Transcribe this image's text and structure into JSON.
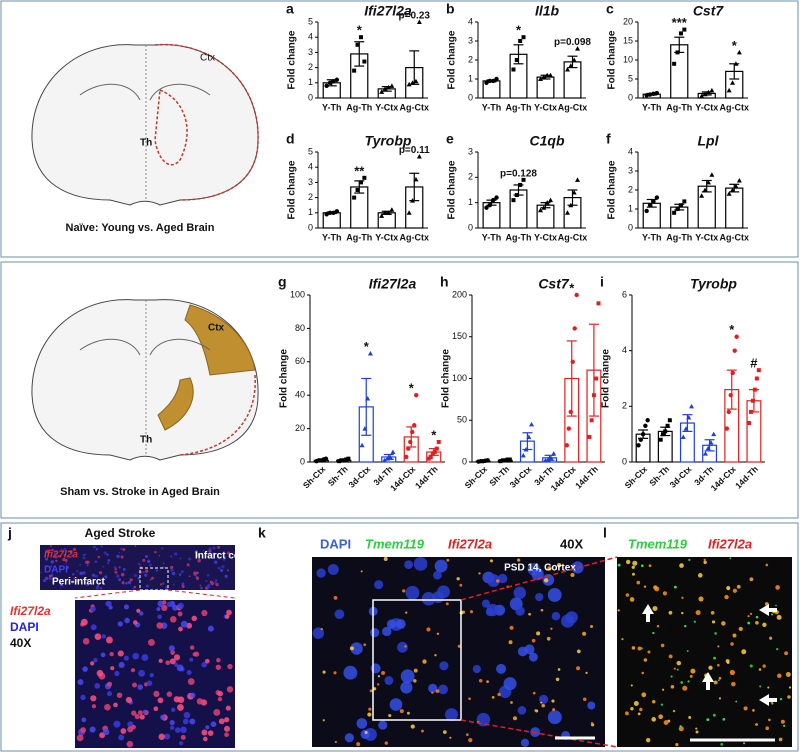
{
  "chart_data": [
    {
      "type": "bar",
      "letter": "a",
      "title": "Ifi27l2a",
      "y_label": "Fold change",
      "categories": [
        "Y-Th",
        "Ag-Th",
        "Y-Ctx",
        "Ag-Ctx"
      ],
      "values": [
        1.0,
        2.9,
        0.6,
        2.0
      ],
      "errors": [
        0.2,
        0.8,
        0.15,
        1.1
      ],
      "points": [
        [
          0.8,
          1.0,
          1.1,
          1.2
        ],
        [
          1.8,
          3.5,
          4.0,
          2.4
        ],
        [
          0.4,
          0.6,
          0.7,
          0.8
        ],
        [
          0.9,
          1.0,
          1.1,
          5.0
        ]
      ],
      "annotations": [
        null,
        "*",
        null,
        "p=0.23"
      ],
      "colors": [
        "#000000",
        "#000000",
        "#000000",
        "#000000"
      ],
      "ylim": [
        0,
        5
      ],
      "yticks": [
        0,
        1,
        2,
        3,
        4,
        5
      ]
    },
    {
      "type": "bar",
      "letter": "b",
      "title": "Il1b",
      "y_label": "Fold change",
      "categories": [
        "Y-Th",
        "Ag-Th",
        "Y-Ctx",
        "Ag-Ctx"
      ],
      "values": [
        0.9,
        2.3,
        1.1,
        1.9
      ],
      "errors": [
        0.05,
        0.5,
        0.1,
        0.3
      ],
      "points": [
        [
          0.8,
          0.9,
          0.9,
          1.0
        ],
        [
          1.5,
          2.0,
          3.0,
          3.2
        ],
        [
          1.0,
          1.1,
          1.2,
          1.2
        ],
        [
          1.5,
          1.7,
          2.0,
          2.6
        ]
      ],
      "annotations": [
        null,
        "*",
        null,
        "p=0.098"
      ],
      "colors": [
        "#000000",
        "#000000",
        "#000000",
        "#000000"
      ],
      "ylim": [
        0,
        4
      ],
      "yticks": [
        0,
        1,
        2,
        3,
        4
      ]
    },
    {
      "type": "bar",
      "letter": "c",
      "title": "Cst7",
      "y_label": "Fold change",
      "categories": [
        "Y-Th",
        "Ag-Th",
        "Y-Ctx",
        "Ag-Ctx"
      ],
      "values": [
        1.0,
        14,
        1.2,
        7
      ],
      "errors": [
        0.2,
        2,
        0.4,
        2
      ],
      "points": [
        [
          0.7,
          0.9,
          1.1,
          1.3
        ],
        [
          9,
          12,
          17,
          18
        ],
        [
          0.5,
          1.0,
          1.5,
          2.0
        ],
        [
          2,
          4,
          9,
          12
        ]
      ],
      "annotations": [
        null,
        "***",
        null,
        "*"
      ],
      "colors": [
        "#000000",
        "#000000",
        "#000000",
        "#000000"
      ],
      "ylim": [
        0,
        20
      ],
      "yticks": [
        0,
        5,
        10,
        15,
        20
      ]
    },
    {
      "type": "bar",
      "letter": "d",
      "title": "Tyrobp",
      "y_label": "Fold change",
      "categories": [
        "Y-Th",
        "Ag-Th",
        "Y-Ctx",
        "Ag-Ctx"
      ],
      "values": [
        1.0,
        2.7,
        1.0,
        2.7
      ],
      "errors": [
        0.05,
        0.4,
        0.1,
        0.9
      ],
      "points": [
        [
          0.9,
          1.0,
          1.0,
          1.1
        ],
        [
          2.0,
          2.5,
          3.0,
          3.3
        ],
        [
          0.8,
          1.0,
          1.0,
          1.2
        ],
        [
          1.0,
          1.8,
          3.2,
          4.7
        ]
      ],
      "annotations": [
        null,
        "**",
        null,
        "p=0.11"
      ],
      "colors": [
        "#000000",
        "#000000",
        "#000000",
        "#000000"
      ],
      "ylim": [
        0,
        5
      ],
      "yticks": [
        0,
        1,
        2,
        3,
        4,
        5
      ]
    },
    {
      "type": "bar",
      "letter": "e",
      "title": "C1qb",
      "y_label": "Fold change",
      "categories": [
        "Y-Th",
        "Ag-Th",
        "Y-Ctx",
        "Ag-Ctx"
      ],
      "values": [
        1.0,
        1.5,
        0.9,
        1.2
      ],
      "errors": [
        0.1,
        0.2,
        0.1,
        0.3
      ],
      "points": [
        [
          0.8,
          0.9,
          1.1,
          1.2
        ],
        [
          1.1,
          1.3,
          1.7,
          1.9
        ],
        [
          0.7,
          0.8,
          1.0,
          1.1
        ],
        [
          0.6,
          0.9,
          1.4,
          1.9
        ]
      ],
      "annotations": [
        null,
        "p=0.128",
        null,
        null
      ],
      "colors": [
        "#000000",
        "#000000",
        "#000000",
        "#000000"
      ],
      "ylim": [
        0,
        3
      ],
      "yticks": [
        0,
        1,
        2,
        3
      ]
    },
    {
      "type": "bar",
      "letter": "f",
      "title": "Lpl",
      "y_label": "Fold change",
      "categories": [
        "Y-Th",
        "Ag-Th",
        "Y-Ctx",
        "Ag-Ctx"
      ],
      "values": [
        1.3,
        1.1,
        2.2,
        2.1
      ],
      "errors": [
        0.2,
        0.15,
        0.3,
        0.2
      ],
      "points": [
        [
          0.9,
          1.2,
          1.4,
          1.6
        ],
        [
          0.8,
          1.0,
          1.2,
          1.4
        ],
        [
          1.7,
          2.0,
          2.4,
          2.8
        ],
        [
          1.8,
          2.0,
          2.2,
          2.5
        ]
      ],
      "annotations": [
        null,
        null,
        null,
        null
      ],
      "colors": [
        "#000000",
        "#000000",
        "#000000",
        "#000000"
      ],
      "ylim": [
        0,
        4
      ],
      "yticks": [
        0,
        1,
        2,
        3,
        4
      ]
    },
    {
      "type": "bar",
      "letter": "g",
      "title": "Ifi27l2a",
      "y_label": "Fold change",
      "categories": [
        "Sh-Ctx",
        "Sh-Th",
        "3d-Ctx",
        "3d-Th",
        "14d-Ctx",
        "14d-Th"
      ],
      "values": [
        1,
        1,
        33,
        3,
        15,
        6
      ],
      "errors": [
        0.5,
        0.5,
        17,
        1.5,
        6,
        2
      ],
      "points": [
        [
          0.5,
          1,
          1,
          1.5,
          2
        ],
        [
          0.5,
          1,
          1,
          1.5,
          2
        ],
        [
          10,
          20,
          38,
          65
        ],
        [
          1,
          2,
          3,
          6
        ],
        [
          3,
          8,
          12,
          18,
          22,
          40
        ],
        [
          2,
          3,
          5,
          6,
          8,
          12
        ]
      ],
      "annotations": [
        null,
        null,
        "*",
        null,
        "*",
        "*"
      ],
      "colors": [
        "#000000",
        "#000000",
        "#1f3fd6",
        "#1f3fd6",
        "#e02020",
        "#e02020"
      ],
      "ylim": [
        0,
        100
      ],
      "yticks": [
        0,
        20,
        40,
        60,
        80,
        100
      ]
    },
    {
      "type": "bar",
      "letter": "h",
      "title": "Cst7",
      "y_label": "Fold change",
      "categories": [
        "Sh-Ctx",
        "Sh-Th",
        "3d-Ctx",
        "3d-Th",
        "14d-Ctx",
        "14d-Th"
      ],
      "values": [
        1,
        2,
        25,
        5,
        100,
        110
      ],
      "errors": [
        0.5,
        1,
        10,
        3,
        45,
        55
      ],
      "points": [
        [
          0.5,
          1,
          1,
          1.5,
          2
        ],
        [
          1,
          2,
          2,
          3,
          3
        ],
        [
          8,
          15,
          30,
          45
        ],
        [
          2,
          3,
          5,
          10
        ],
        [
          20,
          40,
          60,
          120,
          160,
          200
        ],
        [
          30,
          50,
          80,
          100,
          190
        ]
      ],
      "annotations": [
        null,
        null,
        null,
        null,
        "*",
        null
      ],
      "colors": [
        "#000000",
        "#000000",
        "#1f3fd6",
        "#1f3fd6",
        "#e02020",
        "#e02020"
      ],
      "ylim": [
        0,
        200
      ],
      "yticks": [
        0,
        50,
        100,
        150,
        200
      ]
    },
    {
      "type": "bar",
      "letter": "i",
      "title": "Tyrobp",
      "y_label": "Fold change",
      "categories": [
        "Sh-Ctx",
        "Sh-Th",
        "3d-Ctx",
        "3d-Th",
        "14d-Ctx",
        "14d-Th"
      ],
      "values": [
        1.0,
        1.1,
        1.4,
        0.6,
        2.6,
        2.2
      ],
      "errors": [
        0.15,
        0.15,
        0.3,
        0.2,
        0.7,
        0.4
      ],
      "points": [
        [
          0.6,
          0.8,
          1.0,
          1.3,
          1.5
        ],
        [
          0.8,
          1.0,
          1.1,
          1.3,
          1.5
        ],
        [
          0.9,
          1.2,
          1.6,
          2.0
        ],
        [
          0.3,
          0.5,
          0.7,
          1.0
        ],
        [
          1.2,
          1.8,
          2.4,
          3.2,
          4.0,
          4.5
        ],
        [
          1.4,
          1.8,
          2.2,
          2.6,
          3.0,
          3.3
        ]
      ],
      "annotations": [
        null,
        null,
        null,
        null,
        "*",
        "#"
      ],
      "colors": [
        "#000000",
        "#000000",
        "#1f3fd6",
        "#1f3fd6",
        "#e02020",
        "#e02020"
      ],
      "ylim": [
        0,
        6
      ],
      "yticks": [
        0,
        2,
        4,
        6
      ]
    }
  ],
  "panels": {
    "naive": {
      "caption": "Naïve: Young vs. Aged Brain",
      "ctx": "Ctx",
      "th": "Th"
    },
    "stroke": {
      "caption": "Sham vs. Stroke in Aged Brain",
      "ctx": "Ctx",
      "th": "Th"
    },
    "j": {
      "letter": "j",
      "title": "Aged Stroke",
      "marker": "Ifi27l2a",
      "stain": "DAPI",
      "core": "Infarct core",
      "peri": "Peri-infarct",
      "zoom_marker": "Ifi27l2a",
      "zoom_stain": "DAPI",
      "zoom_mag": "40X"
    },
    "k": {
      "letter": "k",
      "stain": "DAPI",
      "marker1": "Tmem119",
      "marker2": "Ifi27l2a",
      "mag": "40X",
      "note": "PSD 14, Cortex"
    },
    "l": {
      "letter": "l",
      "marker1": "Tmem119",
      "marker2": "Ifi27l2a"
    }
  }
}
